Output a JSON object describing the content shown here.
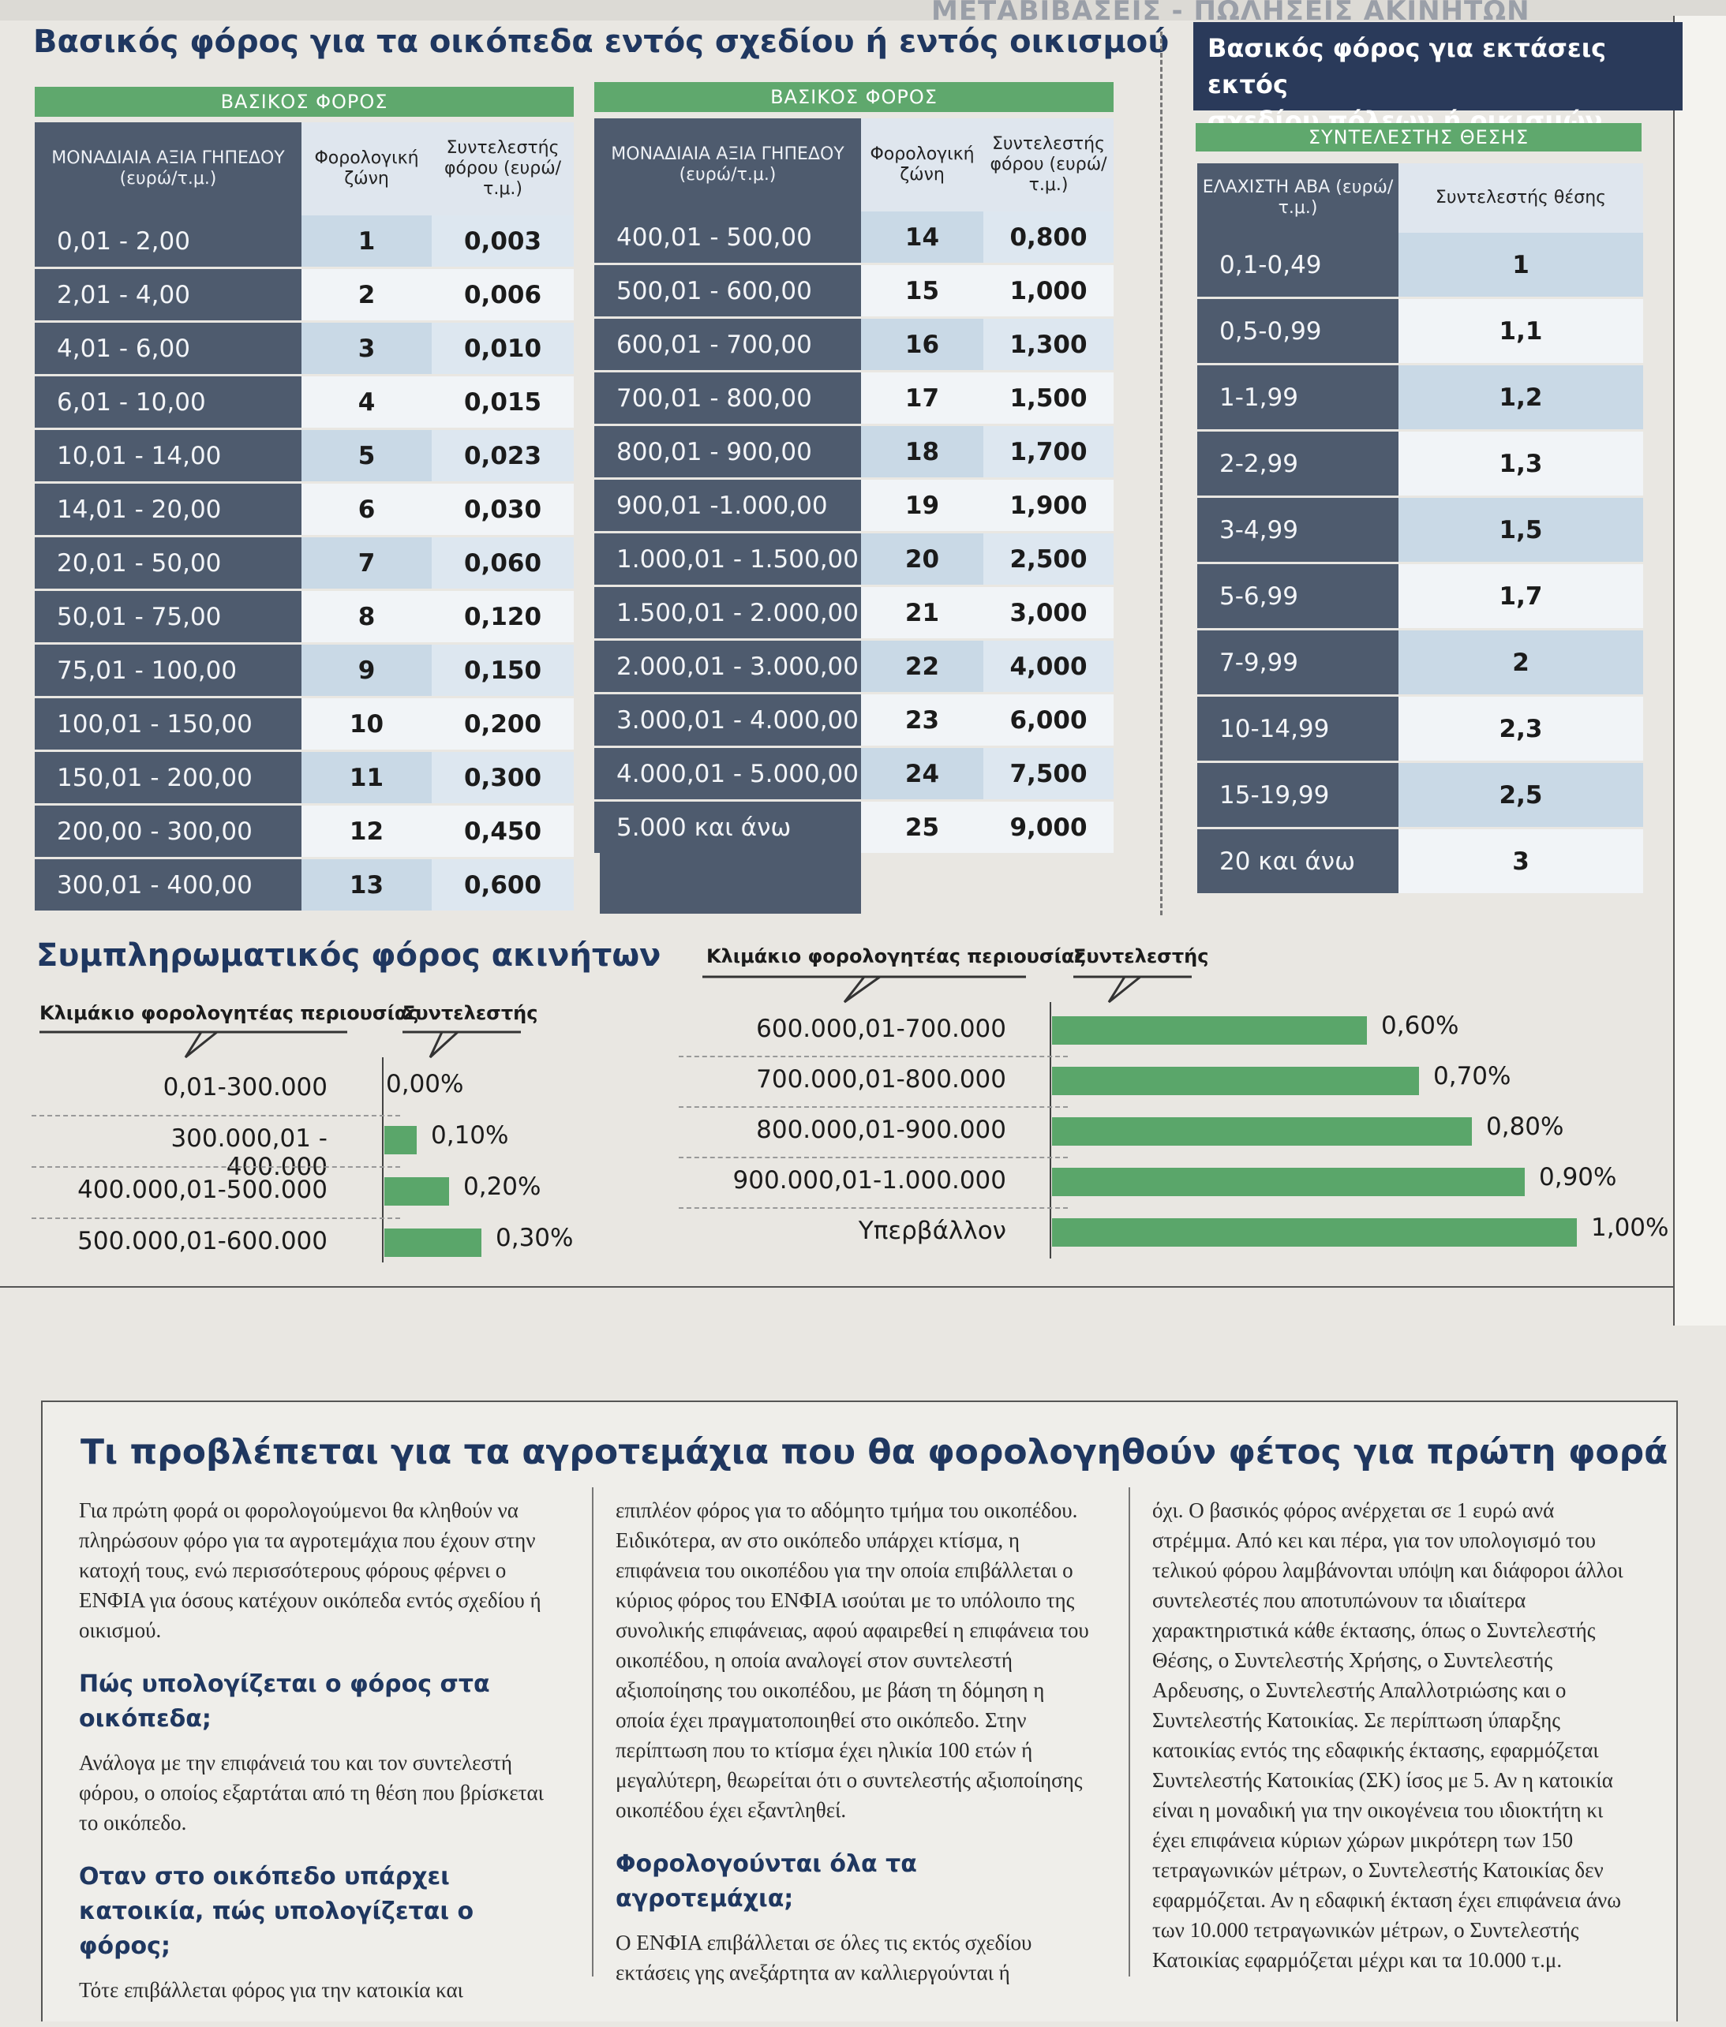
{
  "header_strip": "ΜΕΤΑΒΙΒΑΣΕΙΣ - ΠΩΛΗΣΕΙΣ ΑΚΙΝΗΤΩΝ",
  "in_plan": {
    "title": "Βασικός φόρος για τα οικόπεδα εντός σχεδίου ή εντός οικισμού",
    "band_label": "ΒΑΣΙΚΟΣ ΦΟΡΟΣ",
    "col_headers": [
      "ΜΟΝΑΔΙΑΙΑ ΑΞΙΑ ΓΗΠΕΔΟΥ (ευρώ/τ.μ.)",
      "Φορολογική ζώνη",
      "Συντελεστής φόρου (ευρώ/τ.μ.)"
    ],
    "table1": [
      {
        "range": "0,01 - 2,00",
        "zone": "1",
        "rate": "0,003"
      },
      {
        "range": "2,01 - 4,00",
        "zone": "2",
        "rate": "0,006"
      },
      {
        "range": "4,01 - 6,00",
        "zone": "3",
        "rate": "0,010"
      },
      {
        "range": "6,01 - 10,00",
        "zone": "4",
        "rate": "0,015"
      },
      {
        "range": "10,01 - 14,00",
        "zone": "5",
        "rate": "0,023"
      },
      {
        "range": "14,01 - 20,00",
        "zone": "6",
        "rate": "0,030"
      },
      {
        "range": "20,01 - 50,00",
        "zone": "7",
        "rate": "0,060"
      },
      {
        "range": "50,01 - 75,00",
        "zone": "8",
        "rate": "0,120"
      },
      {
        "range": "75,01 - 100,00",
        "zone": "9",
        "rate": "0,150"
      },
      {
        "range": "100,01 - 150,00",
        "zone": "10",
        "rate": "0,200"
      },
      {
        "range": "150,01 - 200,00",
        "zone": "11",
        "rate": "0,300"
      },
      {
        "range": "200,00 - 300,00",
        "zone": "12",
        "rate": "0,450"
      },
      {
        "range": "300,01 - 400,00",
        "zone": "13",
        "rate": "0,600"
      }
    ],
    "table2": [
      {
        "range": "400,01 - 500,00",
        "zone": "14",
        "rate": "0,800"
      },
      {
        "range": "500,01 - 600,00",
        "zone": "15",
        "rate": "1,000"
      },
      {
        "range": "600,01 - 700,00",
        "zone": "16",
        "rate": "1,300"
      },
      {
        "range": "700,01 - 800,00",
        "zone": "17",
        "rate": "1,500"
      },
      {
        "range": "800,01 - 900,00",
        "zone": "18",
        "rate": "1,700"
      },
      {
        "range": "900,01 -1.000,00",
        "zone": "19",
        "rate": "1,900"
      },
      {
        "range": "1.000,01 - 1.500,00",
        "zone": "20",
        "rate": "2,500"
      },
      {
        "range": "1.500,01 - 2.000,00",
        "zone": "21",
        "rate": "3,000"
      },
      {
        "range": "2.000,01 - 3.000,00",
        "zone": "22",
        "rate": "4,000"
      },
      {
        "range": "3.000,01 - 4.000,00",
        "zone": "23",
        "rate": "6,000"
      },
      {
        "range": "4.000,01 - 5.000,00",
        "zone": "24",
        "rate": "7,500"
      },
      {
        "range": "5.000 και άνω",
        "zone": "25",
        "rate": "9,000"
      }
    ]
  },
  "out_plan": {
    "title_line1": "Βασικός φόρος για εκτάσεις εκτός",
    "title_line2": "σχεδίου πόλεων ή οικισμών",
    "band_label": "ΣΥΝΤΕΛΕΣΤΗΣ ΘΕΣΗΣ",
    "col_headers": [
      "ΕΛΑΧΙΣΤΗ ΑΒΑ (ευρώ/τ.μ.)",
      "Συντελεστής θέσης"
    ],
    "rows": [
      {
        "range": "0,1-0,49",
        "coef": "1"
      },
      {
        "range": "0,5-0,99",
        "coef": "1,1"
      },
      {
        "range": "1-1,99",
        "coef": "1,2"
      },
      {
        "range": "2-2,99",
        "coef": "1,3"
      },
      {
        "range": "3-4,99",
        "coef": "1,5"
      },
      {
        "range": "5-6,99",
        "coef": "1,7"
      },
      {
        "range": "7-9,99",
        "coef": "2"
      },
      {
        "range": "10-14,99",
        "coef": "2,3"
      },
      {
        "range": "15-19,99",
        "coef": "2,5"
      },
      {
        "range": "20 και άνω",
        "coef": "3"
      }
    ]
  },
  "supplementary": {
    "title": "Συμπληρωματικός φόρος ακινήτων",
    "col_bracket": "Κλιμάκιο φορολογητέας περιουσίας",
    "col_rate": "Συντελεστής",
    "left": [
      {
        "bracket": "0,01-300.000",
        "rate": 0.0,
        "label": "0,00%"
      },
      {
        "bracket": "300.000,01 - 400.000",
        "rate": 0.1,
        "label": "0,10%"
      },
      {
        "bracket": "400.000,01-500.000",
        "rate": 0.2,
        "label": "0,20%"
      },
      {
        "bracket": "500.000,01-600.000",
        "rate": 0.3,
        "label": "0,30%"
      }
    ],
    "right": [
      {
        "bracket": "600.000,01-700.000",
        "rate": 0.6,
        "label": "0,60%"
      },
      {
        "bracket": "700.000,01-800.000",
        "rate": 0.7,
        "label": "0,70%"
      },
      {
        "bracket": "800.000,01-900.000",
        "rate": 0.8,
        "label": "0,80%"
      },
      {
        "bracket": "900.000,01-1.000.000",
        "rate": 0.9,
        "label": "0,90%"
      },
      {
        "bracket": "Υπερβάλλον",
        "rate": 1.0,
        "label": "1,00%"
      }
    ]
  },
  "article": {
    "title": "Τι προβλέπεται για τα αγροτεμάχια που θα φορολογηθούν φέτος για πρώτη φορά",
    "col1": {
      "p1": "Για πρώτη φορά οι φορολογούμενοι θα κληθούν να πληρώσουν φόρο για τα αγροτεμάχια που έχουν στην κατοχή τους, ενώ περισσότερους φόρους φέρνει ο ΕΝΦΙΑ για όσους κατέχουν οικόπεδα εντός σχεδίου ή οικισμού.",
      "h1": "Πώς υπολογίζεται ο φόρος στα οικόπεδα;",
      "p2": "Ανάλογα με την επιφάνειά του και τον συντελεστή φόρου, ο οποίος εξαρτάται από τη θέση που βρίσκεται το οικόπεδο.",
      "h2": "Οταν στο οικόπεδο υπάρχει κατοικία, πώς υπολογίζεται ο φόρος;",
      "p3": "Τότε επιβάλλεται φόρος για την κατοικία και"
    },
    "col2": {
      "p1": "επιπλέον φόρος για το αδόμητο τμήμα του οικοπέδου. Ειδικότερα, αν στο οικόπεδο υπάρχει κτίσμα, η επιφάνεια του οικοπέδου για την οποία επιβάλλεται ο κύριος φόρος του ΕΝΦΙΑ ισούται με το υπόλοιπο της συνολικής επιφάνειας, αφού αφαιρεθεί η επιφάνεια του οικοπέδου, η οποία αναλογεί στον συντελεστή αξιοποίησης του οικοπέδου, με βάση τη δόμηση η οποία έχει πραγματοποιηθεί στο οικόπεδο. Στην περίπτωση που το κτίσμα έχει ηλικία 100 ετών ή μεγαλύτερη, θεωρείται ότι ο συντελεστής αξιοποίησης οικοπέδου έχει εξαντληθεί.",
      "h1": "Φορολογούνται όλα τα αγροτεμάχια;",
      "p2": "Ο ΕΝΦΙΑ επιβάλλεται σε όλες τις εκτός σχεδίου εκτάσεις γης ανεξάρτητα αν καλλιεργούνται ή"
    },
    "col3": {
      "p1": "όχι. Ο βασικός φόρος ανέρχεται σε 1 ευρώ ανά στρέμμα. Από κει και πέρα, για τον υπολογισμό του τελικού φόρου λαμβάνονται υπόψη και διάφοροι άλλοι συντελεστές που αποτυπώνουν τα ιδιαίτερα χαρακτηριστικά κάθε έκτασης, όπως ο Συντελεστής Θέσης, ο Συντελεστής Χρήσης, ο Συντελεστής Αρδευσης, ο Συντελεστής Απαλλοτριώσης και ο Συντελεστής Κατοικίας. Σε περίπτωση ύπαρξης κατοικίας εντός της εδαφικής έκτασης, εφαρμόζεται Συντελεστής Κατοικίας (ΣΚ) ίσος με 5. Αν η κατοικία είναι η μοναδική για την οικογένεια του ιδιοκτήτη κι έχει επιφάνεια κύριων χώρων μικρότερη των 150 τετραγωνικών μέτρων, ο Συντελεστής Κατοικίας δεν εφαρμόζεται. Αν η εδαφική έκταση έχει επιφάνεια άνω των 10.000 τετραγωνικών μέτρων, ο Συντελεστής Κατοικίας εφαρμόζεται μέχρι και τα 10.000 τ.μ."
    }
  }
}
